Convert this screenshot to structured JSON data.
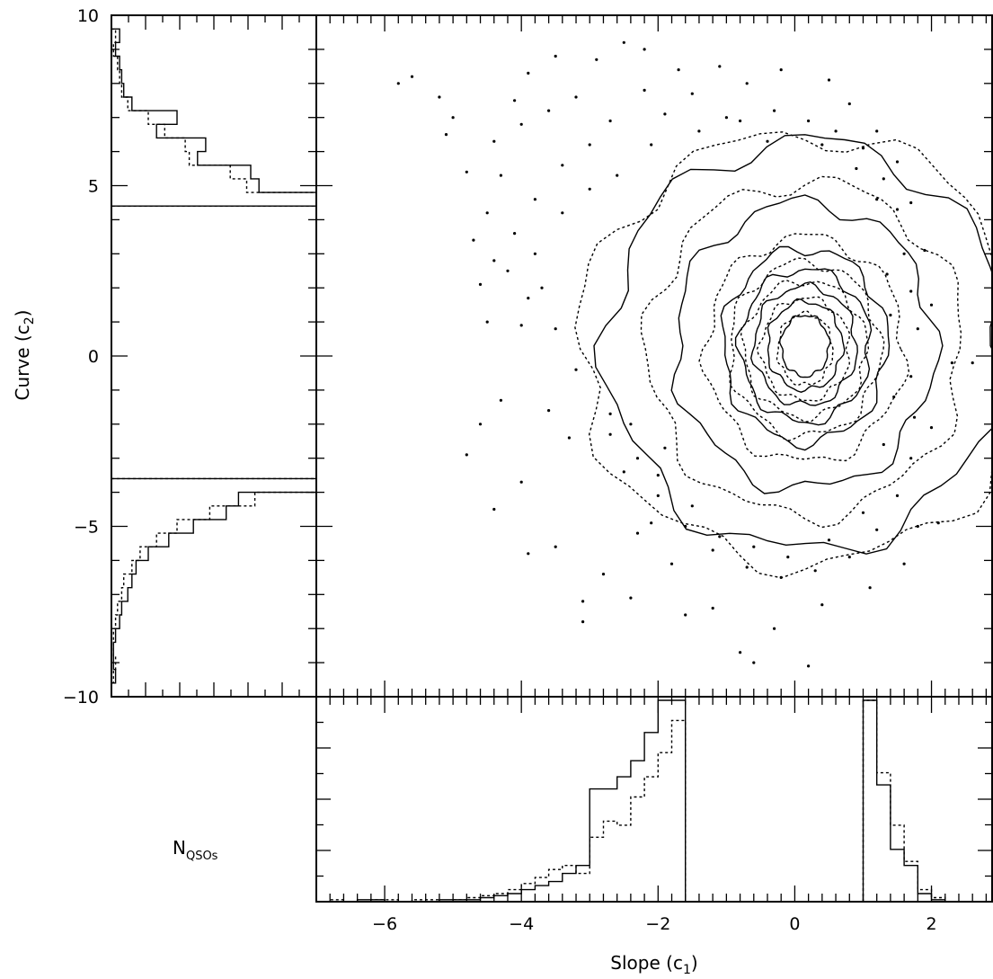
{
  "chart_data": [
    {
      "type": "scatter",
      "panel": "main",
      "xlabel": "",
      "ylabel": "Curve (c2)",
      "ylabel_main": "Curve (c",
      "ylabel_sub": "2",
      "ylabel_close": ")",
      "xlim": [
        -7,
        2.9
      ],
      "ylim": [
        -10,
        10
      ],
      "y_ticks": [
        10,
        5,
        0,
        -5,
        -10
      ],
      "y_tick_labels": [
        "10",
        "5",
        "0",
        "−5",
        "−10"
      ],
      "contours": [
        {
          "name": "",
          "style": "solid",
          "center": [
            0.15,
            0.3
          ],
          "levels": [
            [
              0.35,
              0.9
            ],
            [
              0.55,
              1.3
            ],
            [
              0.75,
              1.75
            ],
            [
              0.95,
              2.25
            ],
            [
              1.2,
              2.85
            ],
            [
              1.9,
              4.2
            ],
            [
              2.9,
              6.0
            ]
          ]
        },
        {
          "name": "",
          "style": "dotted",
          "center": [
            0.15,
            0.2
          ],
          "levels": [
            [
              0.4,
              1.05
            ],
            [
              0.65,
              1.5
            ],
            [
              0.9,
              2.0
            ],
            [
              1.1,
              2.55
            ],
            [
              1.45,
              3.3
            ],
            [
              2.3,
              4.9
            ],
            [
              3.3,
              6.3
            ]
          ]
        }
      ],
      "scatter": [
        [
          -5.8,
          8.0
        ],
        [
          -5.6,
          8.2
        ],
        [
          -5.2,
          7.6
        ],
        [
          -5.0,
          7.0
        ],
        [
          -5.1,
          6.5
        ],
        [
          -4.8,
          5.4
        ],
        [
          -4.7,
          3.4
        ],
        [
          -4.4,
          2.8
        ],
        [
          -4.5,
          1.0
        ],
        [
          -4.6,
          -2.0
        ],
        [
          -4.3,
          -1.3
        ],
        [
          -4.8,
          -2.9
        ],
        [
          -4.0,
          -3.7
        ],
        [
          -4.4,
          -4.5
        ],
        [
          -3.9,
          -5.8
        ],
        [
          -3.5,
          -5.6
        ],
        [
          -3.1,
          -7.2
        ],
        [
          -3.1,
          -7.8
        ],
        [
          -2.8,
          -6.4
        ],
        [
          -2.4,
          -7.1
        ],
        [
          -2.3,
          -5.2
        ],
        [
          -2.1,
          -4.9
        ],
        [
          -1.8,
          -6.1
        ],
        [
          -1.6,
          -7.6
        ],
        [
          -1.2,
          -7.4
        ],
        [
          -0.8,
          -8.7
        ],
        [
          -0.6,
          -9.0
        ],
        [
          -0.3,
          -8.0
        ],
        [
          0.2,
          -9.1
        ],
        [
          0.4,
          -7.3
        ],
        [
          1.1,
          -6.8
        ],
        [
          1.6,
          -6.1
        ],
        [
          1.8,
          -5.0
        ],
        [
          2.1,
          -4.9
        ],
        [
          2.0,
          -2.1
        ],
        [
          2.3,
          -0.2
        ],
        [
          2.6,
          -0.2
        ],
        [
          2.0,
          1.5
        ],
        [
          1.9,
          3.1
        ],
        [
          1.7,
          4.5
        ],
        [
          1.5,
          5.7
        ],
        [
          1.2,
          6.6
        ],
        [
          0.8,
          7.4
        ],
        [
          0.5,
          8.1
        ],
        [
          -0.2,
          8.4
        ],
        [
          -0.7,
          8.0
        ],
        [
          -1.1,
          8.5
        ],
        [
          -1.7,
          8.4
        ],
        [
          -2.2,
          9.0
        ],
        [
          -2.5,
          9.2
        ],
        [
          -2.9,
          8.7
        ],
        [
          -3.5,
          8.8
        ],
        [
          -3.9,
          8.3
        ],
        [
          -4.1,
          7.5
        ],
        [
          -4.4,
          6.3
        ],
        [
          -4.3,
          5.3
        ],
        [
          -4.5,
          4.2
        ],
        [
          -4.6,
          2.1
        ],
        [
          -4.0,
          0.9
        ],
        [
          -3.6,
          -1.6
        ],
        [
          -3.3,
          -2.4
        ],
        [
          -2.7,
          -2.3
        ],
        [
          -2.5,
          -3.4
        ],
        [
          -2.0,
          -3.5
        ],
        [
          -3.0,
          6.2
        ],
        [
          -3.4,
          5.6
        ],
        [
          -3.8,
          4.6
        ],
        [
          -4.1,
          3.6
        ],
        [
          -4.2,
          2.5
        ],
        [
          -3.9,
          1.7
        ],
        [
          -4.0,
          6.8
        ],
        [
          -3.6,
          7.2
        ],
        [
          -3.2,
          7.6
        ],
        [
          -2.7,
          6.9
        ],
        [
          -2.2,
          7.8
        ],
        [
          -1.9,
          7.1
        ],
        [
          -1.5,
          7.7
        ],
        [
          -1.0,
          7.0
        ],
        [
          -0.3,
          7.2
        ],
        [
          0.2,
          6.9
        ],
        [
          0.6,
          6.6
        ],
        [
          1.0,
          6.1
        ],
        [
          1.3,
          5.2
        ],
        [
          1.5,
          4.3
        ],
        [
          1.6,
          3.0
        ],
        [
          1.7,
          1.9
        ],
        [
          1.8,
          0.8
        ],
        [
          1.7,
          -0.6
        ],
        [
          1.75,
          -1.8
        ],
        [
          1.7,
          -3.0
        ],
        [
          1.5,
          -4.1
        ],
        [
          1.2,
          -5.1
        ],
        [
          0.8,
          -5.9
        ],
        [
          0.3,
          -6.3
        ],
        [
          -0.2,
          -6.5
        ],
        [
          -0.7,
          -6.2
        ],
        [
          -1.2,
          -5.7
        ],
        [
          -1.6,
          -5.0
        ],
        [
          -2.0,
          -4.1
        ],
        [
          -2.3,
          -3.0
        ],
        [
          -2.7,
          -1.7
        ],
        [
          -3.2,
          -0.4
        ],
        [
          -3.5,
          0.8
        ],
        [
          -3.7,
          2.0
        ],
        [
          -3.8,
          3.0
        ],
        [
          -3.4,
          4.2
        ],
        [
          -3.0,
          4.9
        ],
        [
          -2.6,
          5.3
        ],
        [
          -2.1,
          6.2
        ],
        [
          -1.4,
          6.6
        ],
        [
          -0.8,
          6.9
        ],
        [
          -0.4,
          6.3
        ],
        [
          0.4,
          6.2
        ],
        [
          0.9,
          5.5
        ],
        [
          1.2,
          4.6
        ],
        [
          1.35,
          2.4
        ],
        [
          1.4,
          1.2
        ],
        [
          1.45,
          -1.2
        ],
        [
          1.3,
          -2.6
        ],
        [
          1.0,
          -4.6
        ],
        [
          0.5,
          -5.4
        ],
        [
          -0.1,
          -5.9
        ],
        [
          -0.6,
          -5.6
        ],
        [
          -1.1,
          -5.3
        ],
        [
          -1.5,
          -4.4
        ],
        [
          -1.9,
          -2.7
        ],
        [
          -2.4,
          -2.0
        ]
      ],
      "tick_marks_only": true
    },
    {
      "type": "line",
      "panel": "bottom-histogram",
      "xlabel": "Slope (c1)",
      "xlabel_main": "Slope (c",
      "xlabel_sub": "1",
      "xlabel_close": ")",
      "ylabel": "NQSOs",
      "ylabel_main": "N",
      "ylabel_sub": "QSOs",
      "xlim": [
        -7,
        2.9
      ],
      "x_ticks": [
        -6,
        -4,
        -2,
        0,
        2
      ],
      "x_tick_labels": [
        "−6",
        "−4",
        "−2",
        "0",
        "2"
      ],
      "bin_width": 0.2,
      "ylim": [
        0,
        100
      ],
      "series": [
        {
          "name": "",
          "style": "solid",
          "x": [
            -7.0,
            -6.8,
            -6.6,
            -6.4,
            -6.2,
            -6.0,
            -5.8,
            -5.6,
            -5.4,
            -5.2,
            -5.0,
            -4.8,
            -4.6,
            -4.4,
            -4.2,
            -4.0,
            -3.8,
            -3.6,
            -3.4,
            -3.2,
            -3.0,
            -2.8,
            -2.6,
            -2.4,
            -2.2,
            -2.0,
            -1.8,
            1.0,
            1.2,
            1.4,
            1.6,
            1.8,
            2.0
          ],
          "values": [
            0,
            0,
            0,
            1,
            1,
            0,
            0,
            0,
            0,
            1,
            1,
            1,
            2,
            3,
            4,
            6,
            8,
            10,
            14,
            18,
            56,
            56,
            62,
            70,
            84,
            100,
            100,
            100,
            58,
            26,
            18,
            4,
            1
          ]
        },
        {
          "name": "",
          "style": "dotted",
          "x": [
            -7.0,
            -6.8,
            -6.6,
            -6.4,
            -6.2,
            -6.0,
            -5.8,
            -5.6,
            -5.4,
            -5.2,
            -5.0,
            -4.8,
            -4.6,
            -4.4,
            -4.2,
            -4.0,
            -3.8,
            -3.6,
            -3.4,
            -3.2,
            -3.0,
            -2.8,
            -2.6,
            -2.4,
            -2.2,
            -2.0,
            -1.8,
            1.0,
            1.2,
            1.4,
            1.6,
            1.8,
            2.0
          ],
          "values": [
            0,
            1,
            0,
            0,
            1,
            1,
            0,
            1,
            1,
            0,
            1,
            2,
            3,
            4,
            6,
            9,
            12,
            16,
            18,
            14,
            32,
            40,
            38,
            52,
            62,
            74,
            90,
            100,
            64,
            38,
            20,
            6,
            2
          ]
        }
      ]
    },
    {
      "type": "line",
      "panel": "left-histogram",
      "orientation": "horizontal",
      "ylim": [
        -10,
        10
      ],
      "bin_width": 0.4,
      "xlim": [
        0,
        100
      ],
      "series": [
        {
          "name": "",
          "style": "solid",
          "y": [
            9.6,
            9.2,
            8.8,
            8.4,
            8.0,
            7.6,
            7.2,
            6.8,
            6.4,
            6.0,
            5.6,
            5.2,
            4.8,
            -3.6,
            -4.0,
            -4.4,
            -4.8,
            -5.2,
            -5.6,
            -6.0,
            -6.4,
            -6.8,
            -7.2,
            -7.6,
            -8.0,
            -8.4,
            -8.8,
            -9.2,
            -9.6
          ],
          "values": [
            4,
            2,
            4,
            5,
            6,
            10,
            32,
            22,
            46,
            42,
            68,
            72,
            100,
            100,
            62,
            56,
            40,
            28,
            18,
            12,
            10,
            8,
            5,
            4,
            2,
            1,
            1,
            2,
            0
          ]
        },
        {
          "name": "",
          "style": "dotted",
          "y": [
            9.6,
            9.2,
            8.8,
            8.4,
            8.0,
            7.6,
            7.2,
            6.8,
            6.4,
            6.0,
            5.6,
            5.2,
            4.8,
            -3.6,
            -4.0,
            -4.4,
            -4.8,
            -5.2,
            -5.6,
            -6.0,
            -6.4,
            -6.8,
            -7.2,
            -7.6,
            -8.0,
            -8.4,
            -8.8,
            -9.2,
            -9.6
          ],
          "values": [
            2,
            1,
            3,
            4,
            5,
            8,
            18,
            26,
            36,
            38,
            58,
            66,
            100,
            100,
            70,
            48,
            32,
            22,
            14,
            10,
            6,
            5,
            3,
            2,
            1,
            1,
            2,
            1,
            0
          ]
        }
      ]
    }
  ]
}
